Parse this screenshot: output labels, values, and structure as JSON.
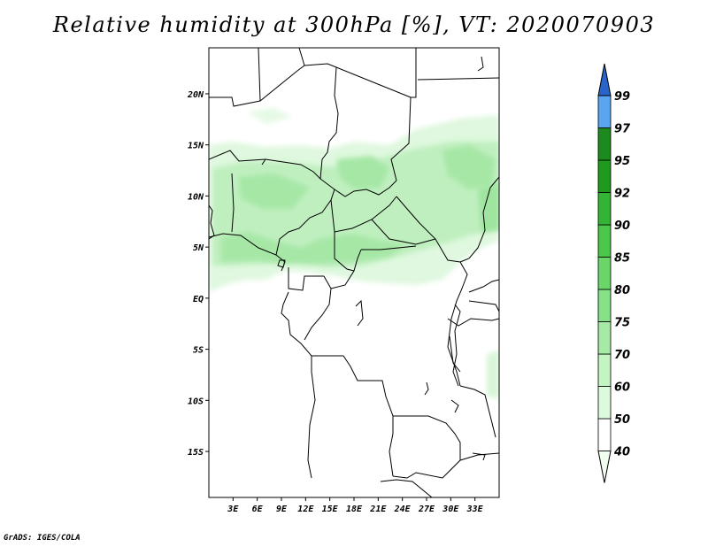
{
  "title": "Relative humidity at 300hPa [%], VT: 2020070903",
  "credit": "GrADS: IGES/COLA",
  "map": {
    "lon_range": [
      0,
      36
    ],
    "lat_range": [
      -19.5,
      24.5
    ],
    "lon_ticks": [
      {
        "value": 3,
        "label": "3E"
      },
      {
        "value": 6,
        "label": "6E"
      },
      {
        "value": 9,
        "label": "9E"
      },
      {
        "value": 12,
        "label": "12E"
      },
      {
        "value": 15,
        "label": "15E"
      },
      {
        "value": 18,
        "label": "18E"
      },
      {
        "value": 21,
        "label": "21E"
      },
      {
        "value": 24,
        "label": "24E"
      },
      {
        "value": 27,
        "label": "27E"
      },
      {
        "value": 30,
        "label": "30E"
      },
      {
        "value": 33,
        "label": "33E"
      }
    ],
    "lat_ticks": [
      {
        "value": 20,
        "label": "20N"
      },
      {
        "value": 15,
        "label": "15N"
      },
      {
        "value": 10,
        "label": "10N"
      },
      {
        "value": 5,
        "label": "5N"
      },
      {
        "value": 0,
        "label": "EQ"
      },
      {
        "value": -5,
        "label": "5S"
      },
      {
        "value": -10,
        "label": "10S"
      },
      {
        "value": -15,
        "label": "15S"
      }
    ],
    "land_outline_color": "#000000"
  },
  "colorbar": {
    "labels": [
      "40",
      "50",
      "60",
      "70",
      "75",
      "80",
      "85",
      "90",
      "92",
      "95",
      "97",
      "99"
    ],
    "colors": [
      "#f0fff0",
      "#ffffff",
      "#dcfadc",
      "#c3f5c3",
      "#a5eba5",
      "#87e187",
      "#6ad66a",
      "#4bc84b",
      "#34b434",
      "#1f9a1f",
      "#1c8a1c",
      "#5aa5f0",
      "#3c82e6",
      "#2a64c8"
    ]
  }
}
